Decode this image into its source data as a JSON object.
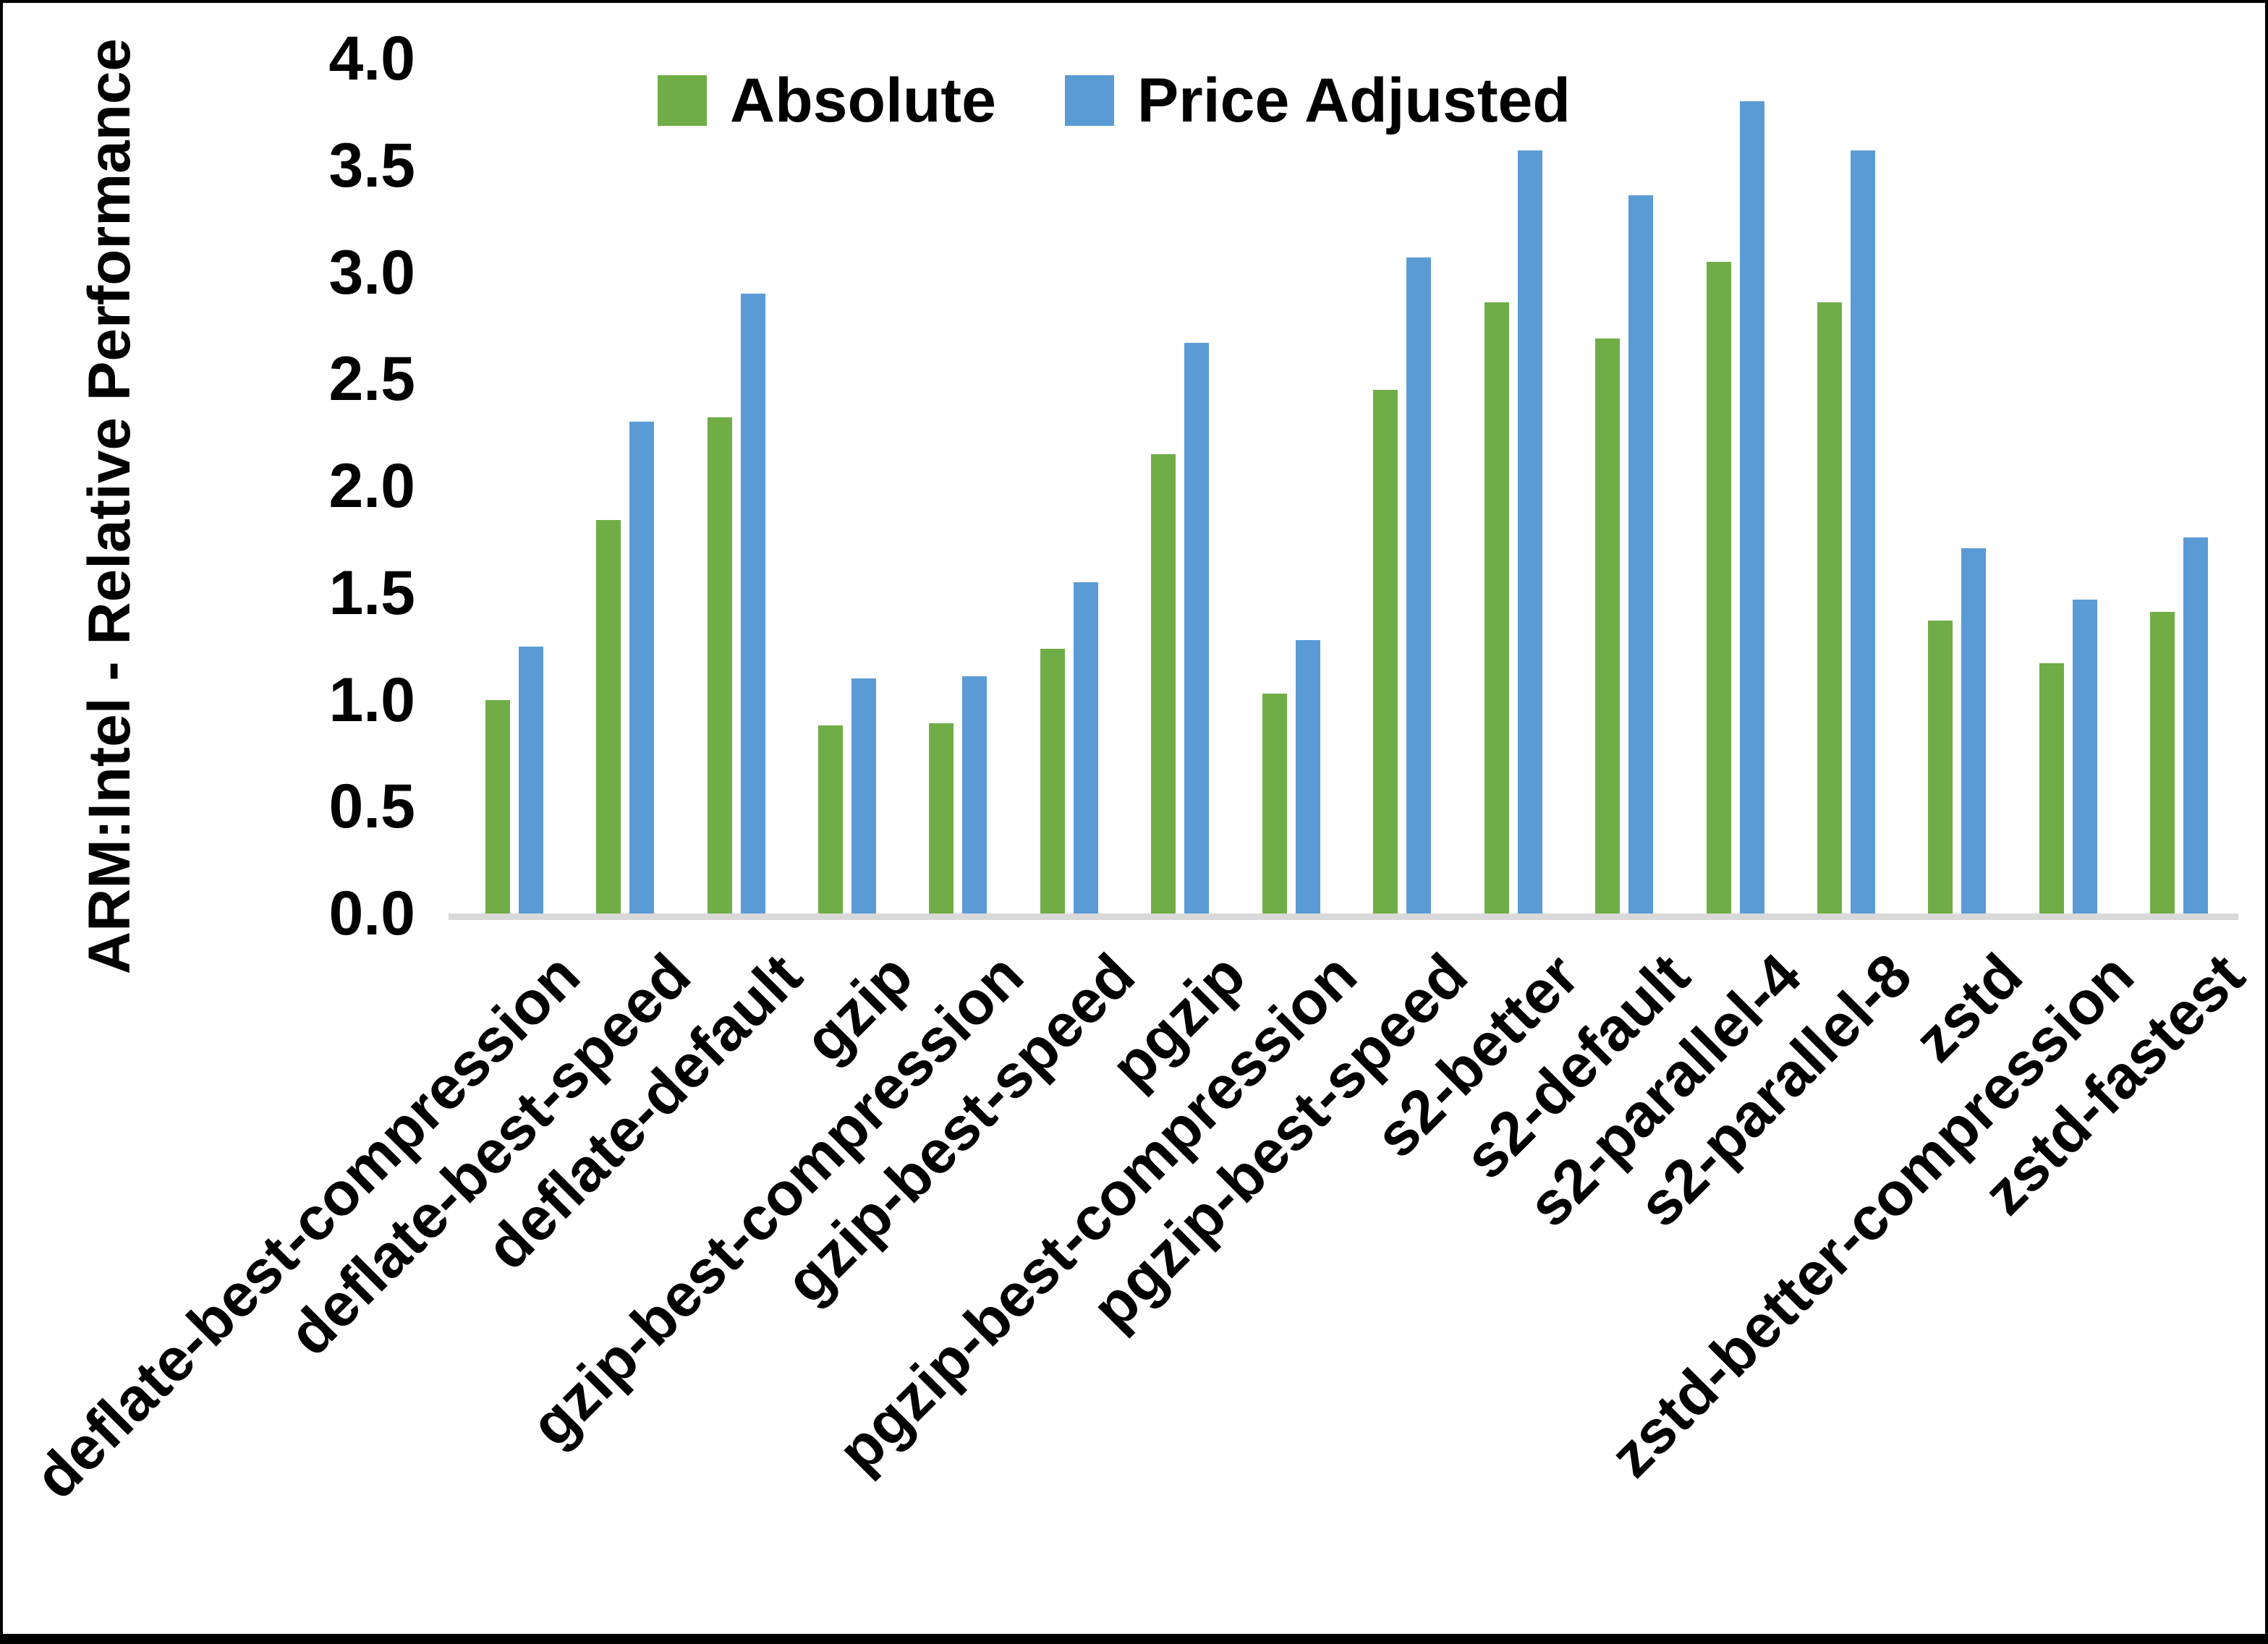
{
  "y_axis": {
    "title": "ARM:Intel - Relative Performance",
    "ticks": [
      "4.0",
      "3.5",
      "3.0",
      "2.5",
      "2.0",
      "1.5",
      "1.0",
      "0.5",
      "0.0"
    ]
  },
  "legend": {
    "items": [
      {
        "label": "Absolute",
        "color": "#70AD47"
      },
      {
        "label": "Price Adjusted",
        "color": "#5B9BD5"
      }
    ],
    "position": "top-center"
  },
  "colors": {
    "absolute_green": "#70AD47",
    "price_adjusted_blue": "#5B9BD5",
    "axis_line": "#D9D9D9",
    "text": "#000000",
    "background": "#FFFFFF",
    "frame_border": "#000000"
  },
  "chart_data": {
    "type": "bar",
    "title": "",
    "xlabel": "",
    "ylabel": "ARM:Intel - Relative Performance",
    "ylim": [
      0,
      4
    ],
    "ytick_step": 0.5,
    "grid": false,
    "legend_position": "top",
    "categories": [
      "deflate-best-compression",
      "deflate-best-speed",
      "deflate-default",
      "gzip",
      "gzip-best-compression",
      "gzip-best-speed",
      "pgzip",
      "pgzip-best-compression",
      "pgzip-best-speed",
      "s2-better",
      "s2-default",
      "s2-parallel-4",
      "s2-parallel-8",
      "zstd",
      "zstd-better-compression",
      "zstd-fastest"
    ],
    "series": [
      {
        "name": "Absolute",
        "color": "#70AD47",
        "values": [
          1.0,
          1.84,
          2.32,
          0.88,
          0.89,
          1.24,
          2.15,
          1.03,
          2.45,
          2.86,
          2.69,
          3.05,
          2.86,
          1.37,
          1.17,
          1.41
        ]
      },
      {
        "name": "Price Adjusted",
        "color": "#5B9BD5",
        "values": [
          1.25,
          2.3,
          2.9,
          1.1,
          1.11,
          1.55,
          2.67,
          1.28,
          3.07,
          3.57,
          3.36,
          3.8,
          3.57,
          1.71,
          1.47,
          1.76
        ]
      }
    ]
  }
}
